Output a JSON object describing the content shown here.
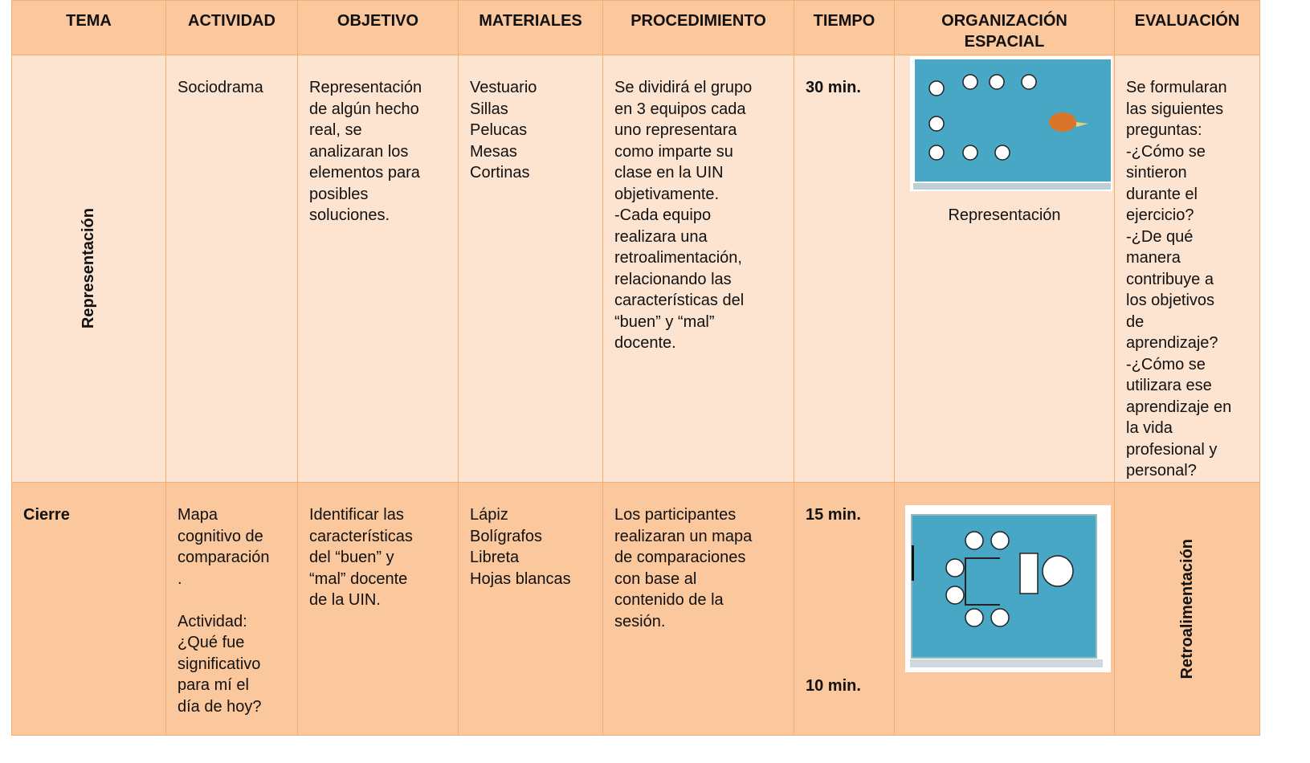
{
  "table": {
    "header": [
      [
        "TEMA"
      ],
      [
        "ACTIVIDAD"
      ],
      [
        "OBJETIVO"
      ],
      [
        "MATERIALES"
      ],
      [
        "PROCEDIMIENTO"
      ],
      [
        "TIEMPO"
      ],
      [
        "ORGANIZACIÓN",
        "ESPACIAL"
      ],
      [
        "EVALUACIÓN"
      ]
    ],
    "rows": [
      [
        [
          [
            "Representación"
          ]
        ],
        [
          [
            "Sociodrama"
          ]
        ],
        [
          [
            "Representación",
            "de algún hecho",
            "real, se",
            "analizaran los",
            "elementos para",
            "posibles",
            "soluciones."
          ]
        ],
        [
          [
            "Vestuario",
            "Sillas",
            "Pelucas",
            "Mesas",
            "Cortinas"
          ]
        ],
        [
          [
            "Se dividirá el grupo",
            "en 3 equipos cada",
            "uno representara",
            "como imparte su",
            "clase en la UIN",
            "objetivamente.",
            "-Cada equipo",
            "realizara una",
            "retroalimentación,",
            "relacionando las",
            "características del",
            "“buen” y “mal”",
            "docente."
          ]
        ],
        [
          [
            "30 min."
          ]
        ],
        [
          [
            "Representación"
          ]
        ],
        [
          [
            "Se formularan",
            "las siguientes",
            "preguntas:",
            "-¿Cómo se",
            "sintieron",
            "durante el",
            "ejercicio?",
            "-¿De qué",
            "manera",
            "contribuye a",
            "los objetivos",
            "de",
            "aprendizaje?",
            "-¿Cómo se",
            "utilizara ese",
            "aprendizaje en",
            "la vida",
            "profesional y",
            "personal?"
          ]
        ]
      ],
      [
        [
          [
            "Cierre"
          ]
        ],
        [
          [
            "Mapa",
            "cognitivo de",
            "comparación",
            "."
          ],
          [
            "Actividad:",
            "¿Qué fue",
            "significativo",
            "para mí el",
            "día de hoy?"
          ]
        ],
        [
          [
            "Identificar las",
            "características",
            "del “buen” y",
            "“mal” docente",
            "de la UIN."
          ]
        ],
        [
          [
            "Lápiz",
            "Bolígrafos",
            "Libreta",
            "Hojas blancas"
          ]
        ],
        [
          [
            "Los participantes",
            "realizaran un mapa",
            "de comparaciones",
            "con base al",
            "contenido de la",
            "sesión."
          ]
        ],
        [
          [
            "15 min."
          ],
          [
            "10 min."
          ]
        ],
        [],
        [
          [
            "Retroalimentación"
          ]
        ]
      ]
    ]
  }
}
